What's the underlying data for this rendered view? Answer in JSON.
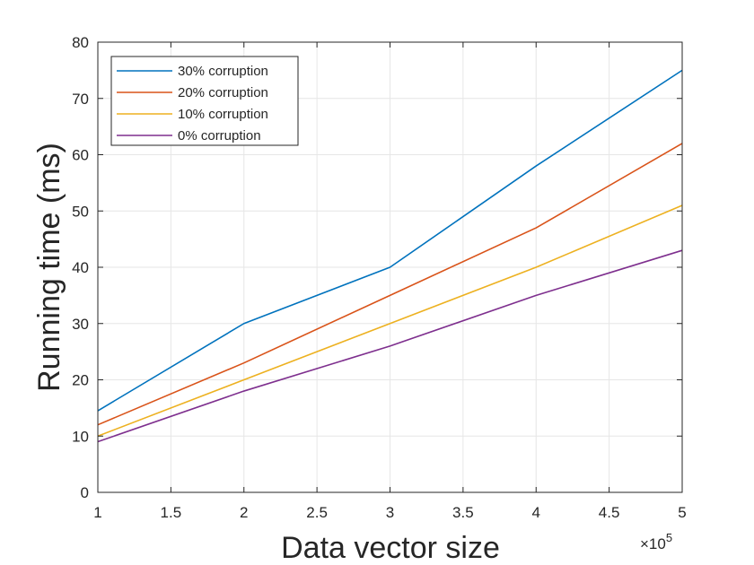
{
  "chart_data": {
    "type": "line",
    "title": "",
    "xlabel": "Data vector size",
    "ylabel": "Running time (ms)",
    "x_exponent_label": "×10",
    "x_exponent_power": "5",
    "x": [
      1,
      2,
      3,
      4,
      5
    ],
    "xlim": [
      1,
      5
    ],
    "ylim": [
      0,
      80
    ],
    "xticks": [
      1,
      1.5,
      2,
      2.5,
      3,
      3.5,
      4,
      4.5,
      5
    ],
    "xtick_labels": [
      "1",
      "1.5",
      "2",
      "2.5",
      "3",
      "3.5",
      "4",
      "4.5",
      "5"
    ],
    "yticks": [
      0,
      10,
      20,
      30,
      40,
      50,
      60,
      70,
      80
    ],
    "ytick_labels": [
      "0",
      "10",
      "20",
      "30",
      "40",
      "50",
      "60",
      "70",
      "80"
    ],
    "grid": true,
    "legend_position": "top-left",
    "series": [
      {
        "name": "30% corruption",
        "color": "#0072BD",
        "values": [
          14.5,
          30,
          40,
          58,
          75
        ]
      },
      {
        "name": "20% corruption",
        "color": "#D95319",
        "values": [
          12,
          23,
          35,
          47,
          62
        ]
      },
      {
        "name": "10% corruption",
        "color": "#EDB120",
        "values": [
          10,
          20,
          30,
          40,
          51
        ]
      },
      {
        "name": "0% corruption",
        "color": "#7E2F8E",
        "values": [
          9,
          18,
          26,
          35,
          43
        ]
      }
    ]
  }
}
